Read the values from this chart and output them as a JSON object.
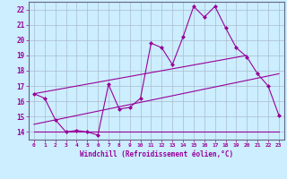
{
  "xlabel": "Windchill (Refroidissement éolien,°C)",
  "bg_color": "#cceeff",
  "grid_color": "#aabbcc",
  "line_color": "#990099",
  "x_ticks": [
    0,
    1,
    2,
    3,
    4,
    5,
    6,
    7,
    8,
    9,
    10,
    11,
    12,
    13,
    14,
    15,
    16,
    17,
    18,
    19,
    20,
    21,
    22,
    23
  ],
  "y_ticks": [
    14,
    15,
    16,
    17,
    18,
    19,
    20,
    21,
    22
  ],
  "ylim": [
    13.5,
    22.5
  ],
  "xlim": [
    -0.5,
    23.5
  ],
  "line1_x": [
    0,
    1,
    2,
    3,
    4,
    5,
    6,
    7,
    8,
    9,
    10,
    11,
    12,
    13,
    14,
    15,
    16,
    17,
    18,
    19,
    20,
    21,
    22,
    23
  ],
  "line1_y": [
    16.5,
    16.2,
    14.8,
    14.0,
    14.1,
    14.0,
    13.8,
    17.1,
    15.5,
    15.6,
    16.2,
    19.8,
    19.5,
    18.4,
    20.2,
    22.2,
    21.5,
    22.2,
    20.8,
    19.5,
    18.9,
    17.8,
    17.0,
    15.1
  ],
  "line2_x": [
    0,
    20
  ],
  "line2_y": [
    16.5,
    19.0
  ],
  "line3_x": [
    0,
    23
  ],
  "line3_y": [
    14.5,
    17.8
  ],
  "line4_x": [
    0,
    23
  ],
  "line4_y": [
    14.0,
    14.0
  ]
}
